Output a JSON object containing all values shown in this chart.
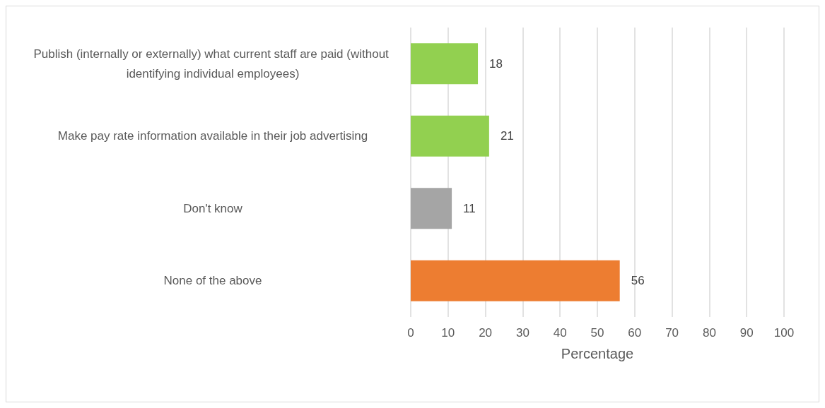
{
  "chart_data": {
    "type": "bar",
    "orientation": "horizontal",
    "categories": [
      "Publish (internally or externally) what current staff are paid (without identifying individual employees)",
      "Make pay rate information available in their job advertising",
      "Don't know",
      "None of the above"
    ],
    "values": [
      18,
      21,
      11,
      56
    ],
    "colors": [
      "#92d050",
      "#92d050",
      "#a5a5a5",
      "#ed7d31"
    ],
    "xlabel": "Percentage",
    "xlim": [
      0,
      100
    ],
    "xticks": [
      0,
      10,
      20,
      30,
      40,
      50,
      60,
      70,
      80,
      90,
      100
    ],
    "grid": "x",
    "data_labels": true
  }
}
